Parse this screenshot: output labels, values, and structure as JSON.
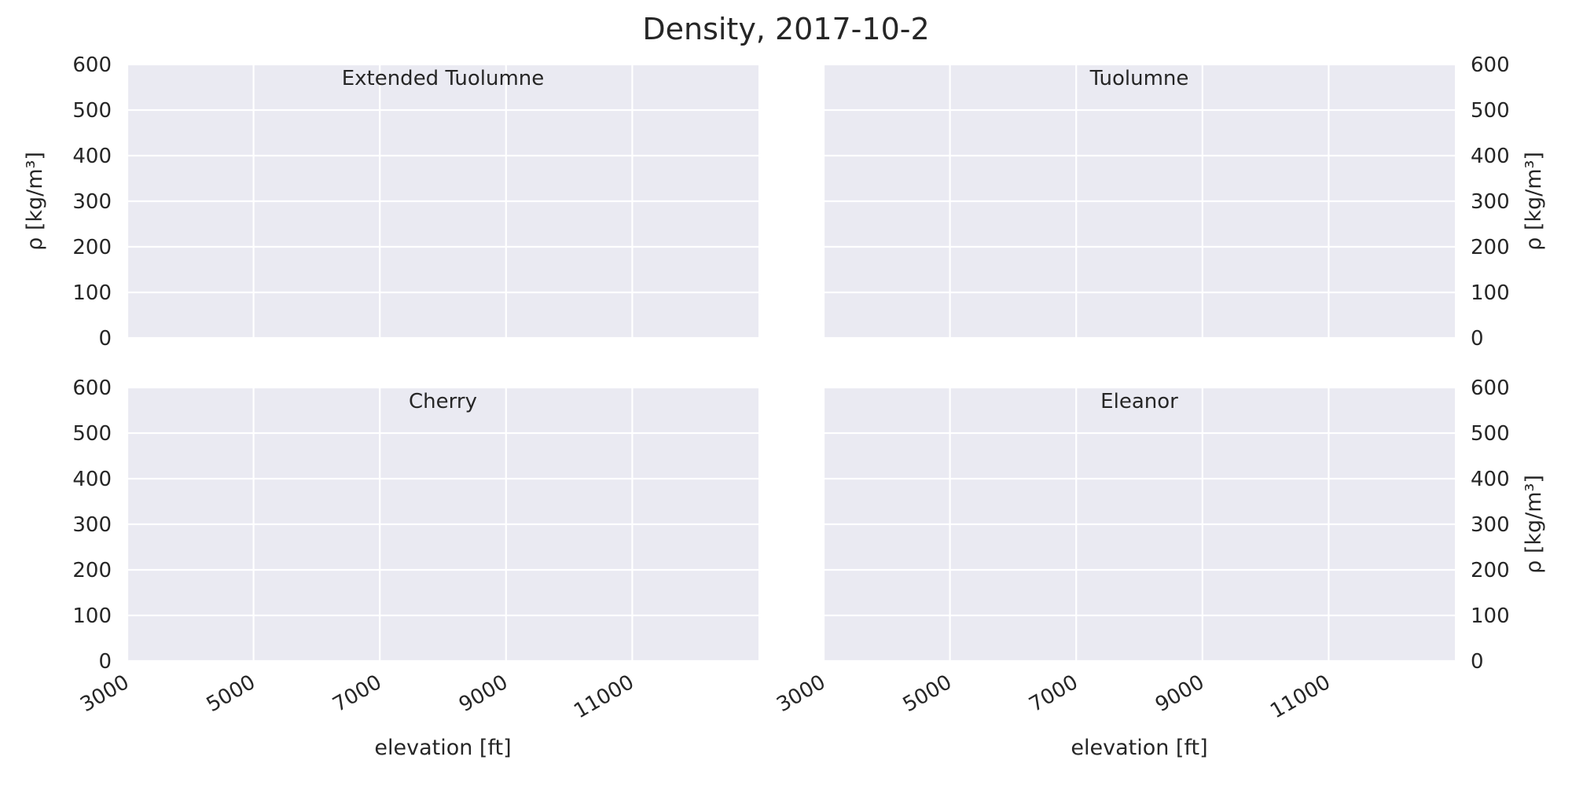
{
  "figure": {
    "title": "Density, 2017-10-2"
  },
  "chart_data": [
    {
      "type": "line",
      "title": "Extended Tuolumne",
      "xlabel": "",
      "ylabel": "ρ [kg/m³]",
      "xlim": [
        3000,
        13000
      ],
      "ylim": [
        0,
        600
      ],
      "xticks": [
        3000,
        5000,
        7000,
        9000,
        11000
      ],
      "yticks": [
        0,
        100,
        200,
        300,
        400,
        500,
        600
      ],
      "ytick_side": "left",
      "show_xticklabels": false,
      "grid": true,
      "series": []
    },
    {
      "type": "line",
      "title": "Tuolumne",
      "xlabel": "",
      "ylabel": "ρ [kg/m³]",
      "xlim": [
        3000,
        13000
      ],
      "ylim": [
        0,
        600
      ],
      "xticks": [
        3000,
        5000,
        7000,
        9000,
        11000
      ],
      "yticks": [
        0,
        100,
        200,
        300,
        400,
        500,
        600
      ],
      "ytick_side": "right",
      "show_xticklabels": false,
      "grid": true,
      "series": []
    },
    {
      "type": "line",
      "title": "Cherry",
      "xlabel": "elevation [ft]",
      "ylabel": "",
      "xlim": [
        3000,
        13000
      ],
      "ylim": [
        0,
        600
      ],
      "xticks": [
        3000,
        5000,
        7000,
        9000,
        11000
      ],
      "yticks": [
        0,
        100,
        200,
        300,
        400,
        500,
        600
      ],
      "ytick_side": "left",
      "show_xticklabels": true,
      "grid": true,
      "series": []
    },
    {
      "type": "line",
      "title": "Eleanor",
      "xlabel": "elevation [ft]",
      "ylabel": "ρ [kg/m³]",
      "xlim": [
        3000,
        13000
      ],
      "ylim": [
        0,
        600
      ],
      "xticks": [
        3000,
        5000,
        7000,
        9000,
        11000
      ],
      "yticks": [
        0,
        100,
        200,
        300,
        400,
        500,
        600
      ],
      "ytick_side": "right",
      "show_xticklabels": true,
      "grid": true,
      "series": []
    }
  ],
  "colors": {
    "axes_background": "#eaeaf2",
    "grid": "#ffffff",
    "text": "#262626"
  }
}
